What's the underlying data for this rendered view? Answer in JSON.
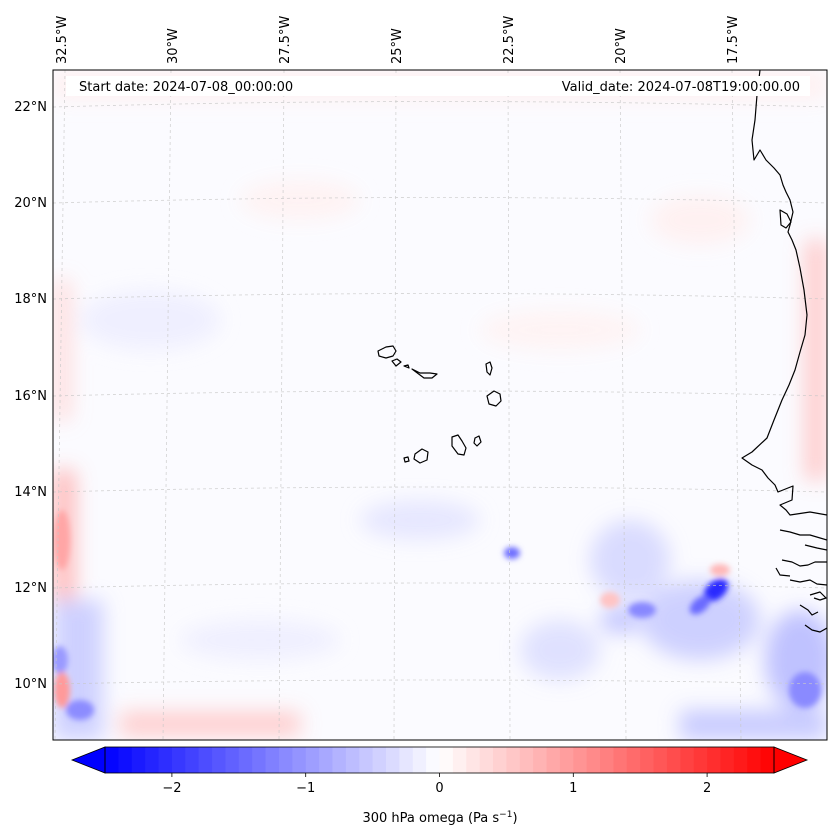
{
  "map": {
    "start_date": "Start date: 2024-07-08_00:00:00",
    "valid_date": "Valid_date: 2024-07-08T19:00:00.00",
    "longitude_labels": [
      "32.5°W",
      "30°W",
      "27.5°W",
      "25°W",
      "22.5°W",
      "20°W",
      "17.5°W"
    ],
    "latitude_labels": [
      "22°N",
      "20°N",
      "18°N",
      "16°N",
      "14°N",
      "12°N",
      "10°N"
    ],
    "gridlines": true,
    "coastline_color": "#000000"
  },
  "colorbar": {
    "label": "300 hPa omega (Pa s",
    "label_exponent": "−1",
    "label_close": ")",
    "ticks": [
      "−2",
      "−1",
      "0",
      "1",
      "2"
    ],
    "tick_values": [
      -2,
      -1,
      0,
      1,
      2
    ],
    "vmin": -2.5,
    "vmax": 2.5,
    "extend": "both",
    "colormap": "bwr",
    "colors": {
      "low": "#0000ff",
      "mid": "#ffffff",
      "high": "#ff0000"
    }
  }
}
